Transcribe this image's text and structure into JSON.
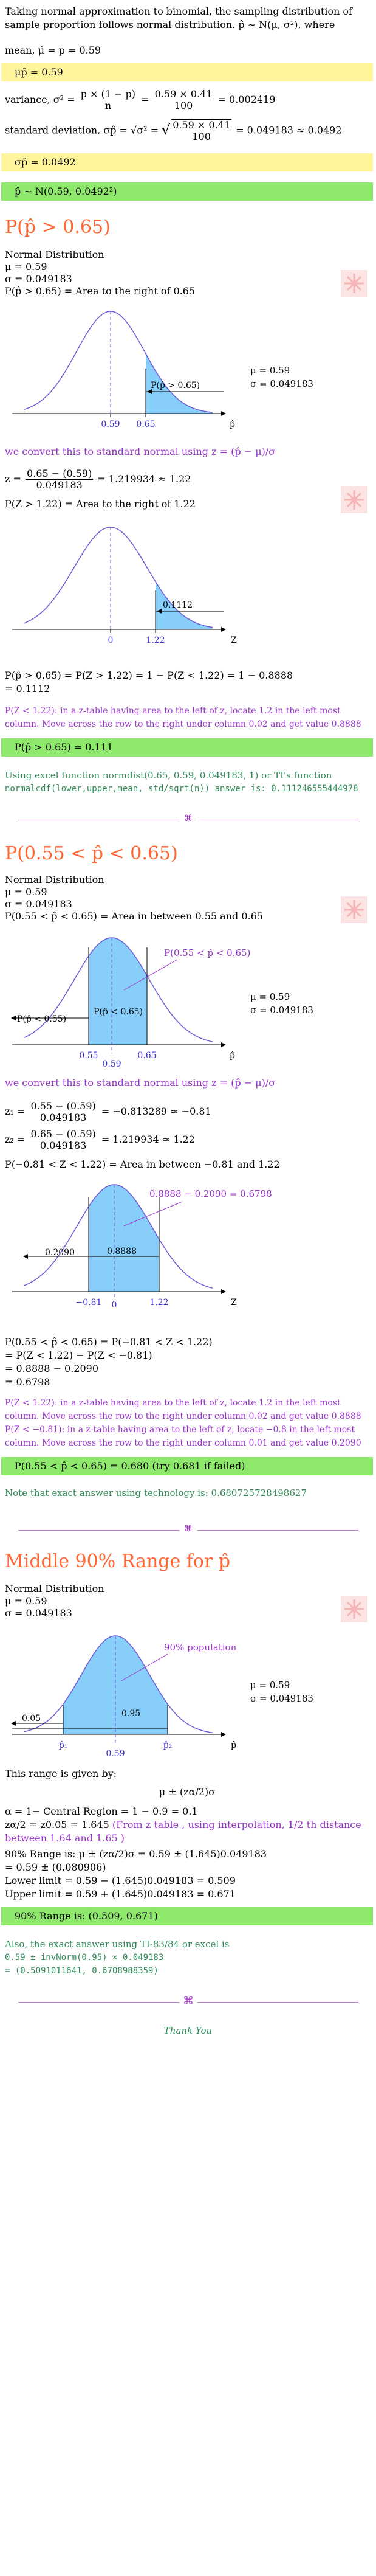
{
  "intro": {
    "line1": "Taking normal approximation to binomial, the sampling distribution of",
    "line2": "sample proportion follows normal distribution. p̂ ∼ N(μ, σ²), where",
    "mean_line": "mean, μ̂ = p = 0.59",
    "mean_box": "μp̂ = 0.59",
    "variance_prefix": "variance, σ² =",
    "variance_num": "p × (1 − p)",
    "variance_den": "n",
    "variance_eq": "=",
    "variance_num2": "0.59 × 0.41",
    "variance_den2": "100",
    "variance_result": "= 0.002419",
    "sd_prefix": "standard deviation, σp̂ = √σ² =",
    "sd_num": "0.59 × 0.41",
    "sd_den": "100",
    "sd_result": "= 0.049183 ≈ 0.0492",
    "sd_box": "σp̂ = 0.0492",
    "dist_box": "p̂ ∼ N(0.59, 0.0492²)"
  },
  "section1": {
    "heading": "P(p̂ > 0.65)",
    "nd_label": "Normal Distribution",
    "mu": "μ = 0.59",
    "sigma": "σ = 0.049183",
    "area_statement": "P(p̂ > 0.65) = Area to the right of 0.65",
    "plot1": {
      "mu_label": "μ = 0.59",
      "sigma_label": "σ = 0.049183",
      "mean_tick": "0.59",
      "x_tick": "0.65",
      "shaded_label": "P(p̂ > 0.65)",
      "axis_label": "p̂"
    },
    "convert_text": "we convert this to standard normal using",
    "convert_formula": "z = (p̂ − μ)/σ",
    "z_prefix": "z =",
    "z_num": "0.65 − (0.59)",
    "z_den": "0.049183",
    "z_result": "= 1.219934 ≈ 1.22",
    "z_area_statement": "P(Z > 1.22) = Area to the right of 1.22",
    "plot2": {
      "area_label": "0.1112",
      "mean_tick": "0",
      "x_tick": "1.22",
      "axis_label": "Z"
    },
    "calc_line1": "P(p̂ > 0.65) = P(Z > 1.22) = 1 − P(Z < 1.22) = 1 − 0.8888",
    "calc_line2": "= 0.1112",
    "note_line1": "P(Z < 1.22): in a z-table having area to the left of z, locate 1.2 in the left most",
    "note_line2": "column. Move across the row to the right under column 0.02 and get value 0.8888",
    "answer": "P(p̂ > 0.65) = 0.111",
    "excel_line1": "Using excel function normdist(0.65, 0.59, 0.049183, 1) or TI's function",
    "excel_line2": "normalcdf(lower,upper,mean, std/sqrt(n)) answer is: 0.111246555444978"
  },
  "section2": {
    "heading": "P(0.55 < p̂ < 0.65)",
    "nd_label": "Normal Distribution",
    "mu": "μ = 0.59",
    "sigma": "σ = 0.049183",
    "area_statement": "P(0.55 < p̂ < 0.65) = Area in between 0.55 and 0.65",
    "plot1": {
      "mu_label": "μ = 0.59",
      "sigma_label": "σ = 0.049183",
      "mean_tick": "0.59",
      "left_tick": "0.55",
      "right_tick": "0.65",
      "callout": "P(0.55 < p̂ < 0.65)",
      "left_label": "P(p̂ < 0.55)",
      "mid_label": "P(p̂ < 0.65)",
      "axis_label": "p̂"
    },
    "convert_text": "we convert this to standard normal using",
    "convert_formula": "z = (p̂ − μ)/σ",
    "z1_prefix": "z₁ =",
    "z1_num": "0.55 − (0.59)",
    "z1_den": "0.049183",
    "z1_result": "= −0.813289 ≈ −0.81",
    "z2_prefix": "z₂ =",
    "z2_num": "0.65 − (0.59)",
    "z2_den": "0.049183",
    "z2_result": "= 1.219934 ≈ 1.22",
    "z_area_statement": "P(−0.81 < Z < 1.22) = Area in between −0.81 and 1.22",
    "plot2": {
      "callout": "0.8888 − 0.2090 = 0.6798",
      "left_label": "0.2090",
      "mid_label": "0.8888",
      "mean_tick": "0",
      "left_tick": "−0.81",
      "right_tick": "1.22",
      "axis_label": "Z"
    },
    "calc_line1": "P(0.55 < p̂ < 0.65) = P(−0.81 < Z < 1.22)",
    "calc_line2": "= P(Z < 1.22) − P(Z < −0.81)",
    "calc_line3": "= 0.8888 − 0.2090",
    "calc_line4": "= 0.6798",
    "note1_line1": "P(Z < 1.22): in a z-table having area to the left of z, locate 1.2 in the left most",
    "note1_line2": "column. Move across the row to the right under column 0.02 and get value 0.8888",
    "note2_line1": "P(Z < −0.81): in a z-table having area to the left of z, locate −0.8 in the left most",
    "note2_line2": "column. Move across the row to the right under column 0.01 and get value 0.2090",
    "answer": "P(0.55 < p̂ < 0.65) = 0.680 (try 0.681 if failed)",
    "tech_note": "Note that exact answer using technology is: 0.680725728498627"
  },
  "section3": {
    "heading": "Middle 90% Range for p̂",
    "nd_label": "Normal Distribution",
    "mu": "μ = 0.59",
    "sigma": "σ = 0.049183",
    "plot": {
      "callout": "90% population",
      "mu_label": "μ = 0.59",
      "sigma_label": "σ = 0.049183",
      "left_tail": "0.05",
      "right_tail": "0.95",
      "p1": "p̂₁",
      "p2": "p̂₂",
      "mean_tick": "0.59",
      "axis_label": "p̂"
    },
    "range_intro": "This range is given by:",
    "range_formula": "μ ± (zα/2)σ",
    "alpha_line": "α = 1− Central Region = 1 − 0.9 = 0.1",
    "z_line": "zα/2 = z0.05 = 1.645",
    "z_note_line1": "(From z table , using interpolation, 1/2 th distance",
    "z_note_line2": "between 1.64 and 1.65 )",
    "range_line1": "90% Range is: μ ± (zα/2)σ = 0.59 ± (1.645)0.049183",
    "range_line2": "= 0.59 ± (0.080906)",
    "lower_line": "Lower limit = 0.59 − (1.645)0.049183 = 0.509",
    "upper_line": "Upper limit = 0.59 + (1.645)0.049183 = 0.671",
    "answer": "90% Range is: (0.509, 0.671)",
    "excel_line1": "Also, the exact answer using TI-83/84 or excel is",
    "excel_line2": "0.59 ± invNorm(0.95) × 0.049183",
    "excel_line3": "= (0.5091011641, 0.6708988359)"
  },
  "footer": {
    "thank_you": "Thank You",
    "divider_symbol": "⌘"
  },
  "colors": {
    "orange": "#ff6633",
    "purple": "#9933cc",
    "green": "#2e8b57",
    "yellow_box": "#fff59d",
    "green_box": "#8ee86b",
    "curve": "#6b5bd6",
    "shade": "#87cefa"
  }
}
